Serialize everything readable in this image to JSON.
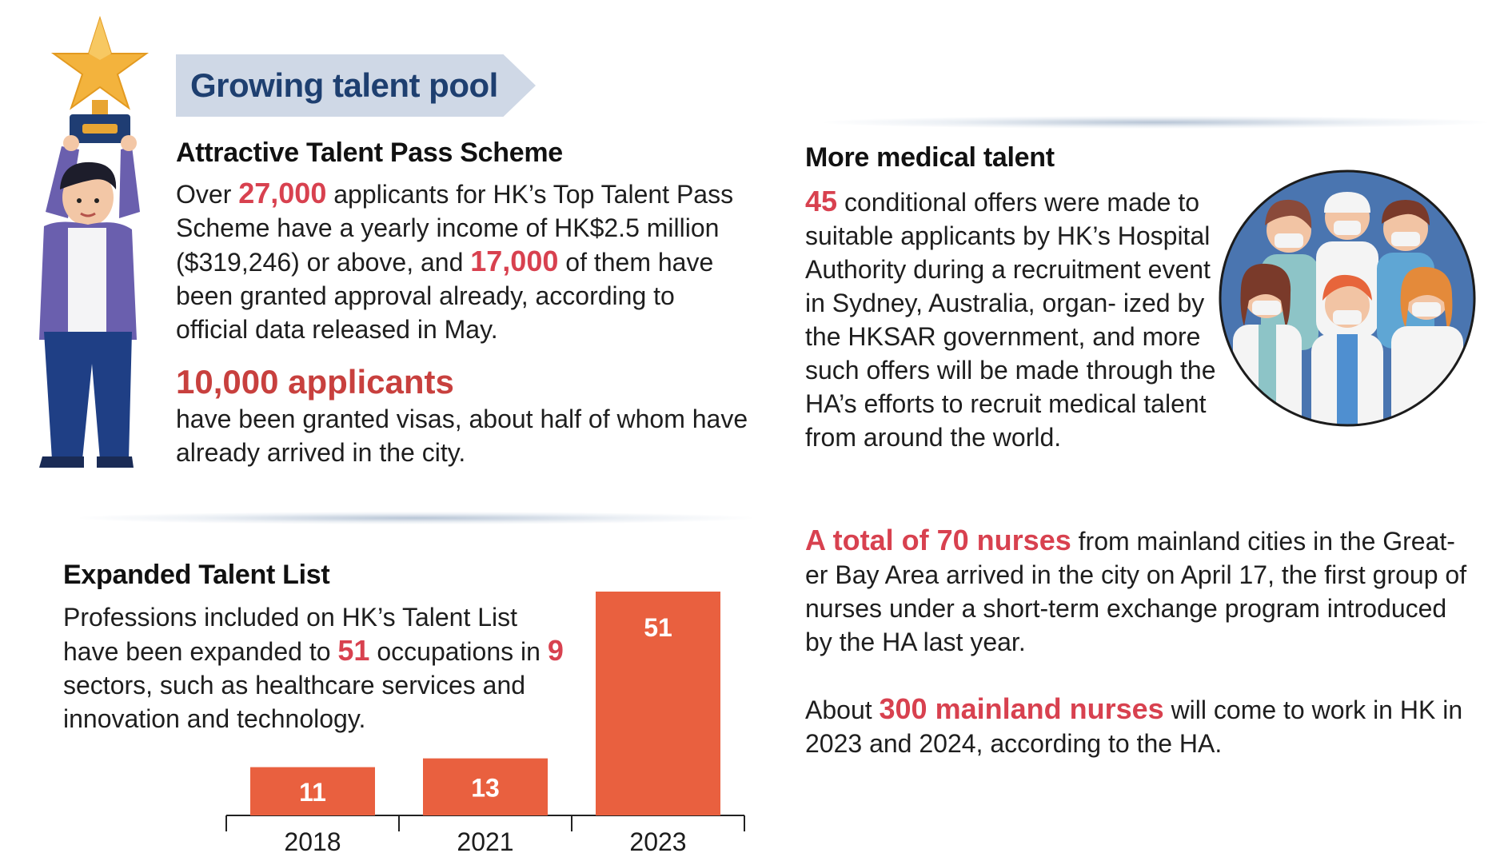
{
  "banner": {
    "title": "Growing talent pool"
  },
  "talent_pass": {
    "heading": "Attractive Talent Pass Scheme",
    "p1_a": "Over ",
    "p1_hl1": "27,000",
    "p1_b": " applicants for HK’s Top Talent Pass Scheme have a yearly income of HK$2.5 million ($319,246) or above, and ",
    "p1_hl2": "17,000",
    "p1_c": " of them have been granted approval already, according to official data released in May.",
    "big_stat": "10,000 applicants",
    "p2": "have been granted visas, about half of whom have already arrived in the city."
  },
  "talent_list": {
    "heading": "Expanded Talent List",
    "p_a": "Professions included on HK’s Talent List have been expanded to ",
    "p_hl1": "51",
    "p_b": " occupations in ",
    "p_hl2": "9",
    "p_c": " sectors, such as healthcare services and innovation and technology."
  },
  "medical": {
    "heading": "More medical talent",
    "p1_hl": "45",
    "p1": " conditional offers were made to suitable applicants by HK’s Hospital Authority during a recruitment event in Sydney, Australia, organ- ized by the HKSAR government, and more such offers will be made through the HA’s efforts to recruit medical talent from around the world.",
    "p2_hl": "A total of 70 nurses",
    "p2": " from mainland cities in the Great- er Bay Area arrived in the city on April 17, the first group of nurses under a short-term exchange program introduced by the HA last year.",
    "p3_a": "About ",
    "p3_hl": "300 mainland nurses",
    "p3_b": " will come to work in HK in 2023 and 2024, according to the HA."
  },
  "colors": {
    "accent_red": "#d8414f",
    "bar": "#e9603f",
    "banner_bg": "#cfd8e6",
    "banner_text": "#1e3f70"
  },
  "icons": [
    "trophy-star-icon",
    "person-holding-trophy-illustration",
    "medical-staff-illustration"
  ],
  "chart_data": {
    "type": "bar",
    "categories": [
      "2018",
      "2021",
      "2023"
    ],
    "values": [
      11,
      13,
      51
    ],
    "title": "",
    "xlabel": "",
    "ylabel": "",
    "ylim": [
      0,
      51
    ],
    "grid": false,
    "data_labels": true
  }
}
